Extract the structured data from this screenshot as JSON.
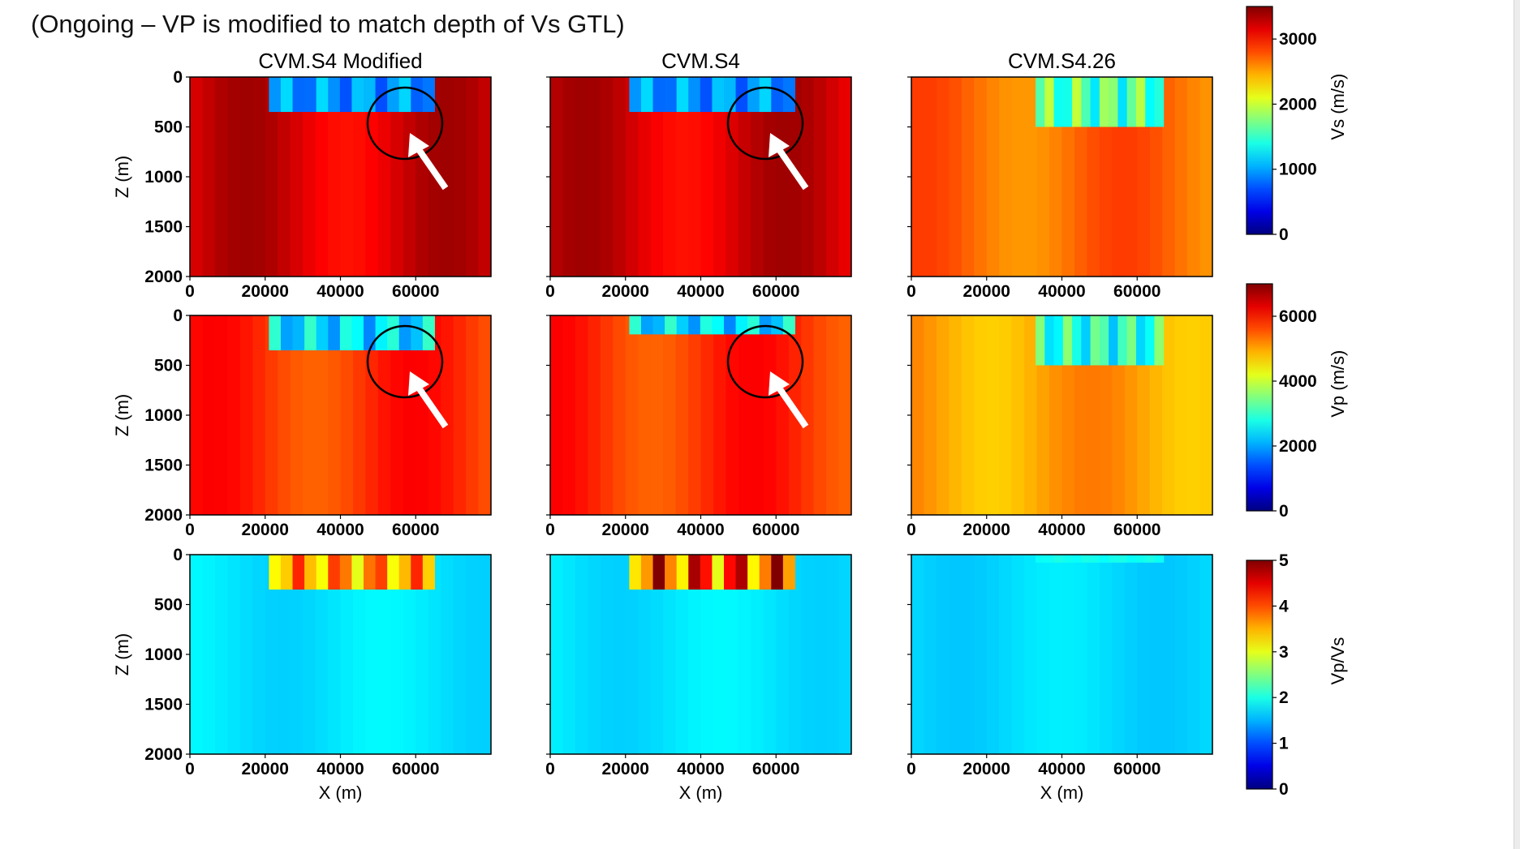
{
  "slide_title": "(Ongoing – VP is modified to match depth of Vs GTL)",
  "colors": {
    "annotation_circle": "#000000",
    "annotation_arrow": "#ffffff",
    "colormap": "jet"
  },
  "chart_data": {
    "type": "heatmap",
    "layout": "3x3 grid",
    "columns": [
      "CVM.S4 Modified",
      "CVM.S4",
      "CVM.S4.26"
    ],
    "xlabel": "X (m)",
    "ylabel": "Z (m)",
    "x_ticks": [
      "0",
      "20000",
      "40000",
      "60000"
    ],
    "z_ticks": [
      "0",
      "500",
      "1000",
      "1500",
      "2000"
    ],
    "xlim": [
      0,
      80000
    ],
    "zlim": [
      2000,
      0
    ],
    "rows": [
      {
        "quantity": "Vs",
        "colorbar_label": "Vs (m/s)",
        "colorbar_range": [
          0,
          3500
        ],
        "colorbar_ticks": [
          "0",
          "1000",
          "2000",
          "3000"
        ],
        "annotated_columns": [
          0,
          1
        ],
        "panels": [
          {
            "column": "CVM.S4 Modified",
            "approx_background": 3200,
            "shallow_layer": {
              "x_range": [
                21000,
                65000
              ],
              "z_bottom": 350,
              "approx_values": [
                700,
                1200
              ]
            }
          },
          {
            "column": "CVM.S4",
            "approx_background": 3200,
            "shallow_layer": {
              "x_range": [
                21000,
                65000
              ],
              "z_bottom": 350,
              "approx_values": [
                700,
                1200
              ]
            }
          },
          {
            "column": "CVM.S4.26",
            "approx_background": 2700,
            "shallow_layer": {
              "x_range": [
                33000,
                67000
              ],
              "z_bottom": 500,
              "approx_values": [
                1200,
                2000
              ]
            }
          }
        ]
      },
      {
        "quantity": "Vp",
        "colorbar_label": "Vp (m/s)",
        "colorbar_range": [
          0,
          7000
        ],
        "colorbar_ticks": [
          "0",
          "2000",
          "4000",
          "6000"
        ],
        "annotated_columns": [
          0,
          1
        ],
        "panels": [
          {
            "column": "CVM.S4 Modified",
            "approx_background": 5800,
            "shallow_layer": {
              "x_range": [
                21000,
                65000
              ],
              "z_bottom": 350,
              "approx_values": [
                1800,
                3000
              ]
            }
          },
          {
            "column": "CVM.S4",
            "approx_background": 5800,
            "shallow_layer": {
              "x_range": [
                21000,
                65000
              ],
              "z_bottom": 190,
              "approx_values": [
                1800,
                3000
              ]
            }
          },
          {
            "column": "CVM.S4.26",
            "approx_background": 5000,
            "shallow_layer": {
              "x_range": [
                33000,
                67000
              ],
              "z_bottom": 500,
              "approx_values": [
                2200,
                3600
              ]
            }
          }
        ]
      },
      {
        "quantity": "Vp/Vs",
        "colorbar_label": "Vp/Vs",
        "colorbar_range": [
          0,
          5
        ],
        "colorbar_ticks": [
          "0",
          "1",
          "2",
          "3",
          "4",
          "5"
        ],
        "annotated_columns": [],
        "panels": [
          {
            "column": "CVM.S4 Modified",
            "approx_background": 1.75,
            "shallow_layer": {
              "x_range": [
                21000,
                65000
              ],
              "z_bottom": 350,
              "approx_values": [
                3.0,
                4.2
              ]
            }
          },
          {
            "column": "CVM.S4",
            "approx_background": 1.75,
            "shallow_layer": {
              "x_range": [
                21000,
                65000
              ],
              "z_bottom": 350,
              "approx_values": [
                3.0,
                5.0
              ]
            }
          },
          {
            "column": "CVM.S4.26",
            "approx_background": 1.7,
            "shallow_layer": {
              "x_range": [
                33000,
                67000
              ],
              "z_bottom": 80,
              "approx_values": [
                1.9,
                2.0
              ]
            }
          }
        ]
      }
    ]
  }
}
